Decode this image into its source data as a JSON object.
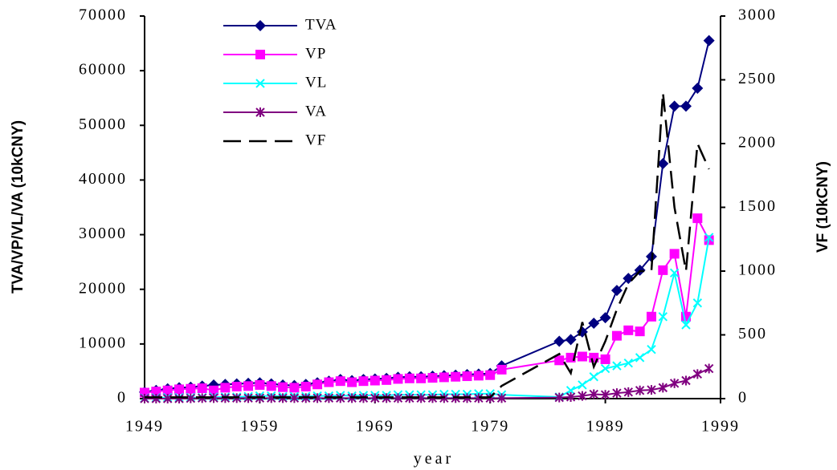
{
  "chart_data": {
    "type": "line",
    "x_label": "year",
    "y_label": "TVA/VP/VL/VA (10kCNY)",
    "y2_label": "VF (10kCNY)",
    "x": [
      1949,
      1950,
      1951,
      1952,
      1953,
      1954,
      1955,
      1956,
      1957,
      1958,
      1959,
      1960,
      1961,
      1962,
      1963,
      1964,
      1965,
      1966,
      1967,
      1968,
      1969,
      1970,
      1971,
      1972,
      1973,
      1974,
      1975,
      1976,
      1977,
      1978,
      1979,
      1980,
      1985,
      1986,
      1987,
      1988,
      1989,
      1990,
      1991,
      1992,
      1993,
      1994,
      1995,
      1996,
      1997,
      1998
    ],
    "xlim": [
      1949,
      1999
    ],
    "xticks": [
      1949,
      1959,
      1969,
      1979,
      1989,
      1999
    ],
    "ylim": [
      0,
      70000
    ],
    "yticks": [
      0,
      10000,
      20000,
      30000,
      40000,
      50000,
      60000,
      70000
    ],
    "y2lim": [
      0,
      3000
    ],
    "y2ticks": [
      0,
      500,
      1000,
      1500,
      2000,
      2500,
      3000
    ],
    "legend": "upper left",
    "series": [
      {
        "name": "TVA",
        "color": "#000080",
        "marker": "diamond",
        "values": [
          1200,
          1500,
          1800,
          2000,
          2100,
          2300,
          2500,
          2600,
          2700,
          2800,
          2900,
          2700,
          2500,
          2400,
          2600,
          2900,
          3200,
          3500,
          3300,
          3500,
          3600,
          3700,
          3900,
          4000,
          4000,
          4100,
          4200,
          4300,
          4400,
          4500,
          4600,
          6000,
          10500,
          10800,
          12200,
          13800,
          14800,
          19800,
          22000,
          23500,
          26000,
          43000,
          53500,
          53500,
          56800,
          65500
        ]
      },
      {
        "name": "VP",
        "color": "#ff00ff",
        "marker": "square",
        "values": [
          1100,
          1300,
          1500,
          1700,
          1800,
          1900,
          1500,
          2000,
          2200,
          2300,
          2500,
          2300,
          2100,
          2000,
          2200,
          2600,
          3000,
          3200,
          3000,
          3200,
          3300,
          3400,
          3600,
          3700,
          3700,
          3800,
          3900,
          4000,
          4100,
          4200,
          4300,
          5300,
          7000,
          7500,
          7700,
          7500,
          7200,
          11500,
          12500,
          12300,
          15000,
          23500,
          26500,
          15000,
          33000,
          29000
        ]
      },
      {
        "name": "VL",
        "color": "#00ffff",
        "marker": "x",
        "values": [
          100,
          150,
          200,
          200,
          200,
          200,
          300,
          300,
          300,
          400,
          500,
          500,
          400,
          400,
          400,
          500,
          500,
          600,
          500,
          600,
          600,
          600,
          700,
          700,
          700,
          700,
          800,
          800,
          800,
          900,
          900,
          700,
          300,
          1500,
          2500,
          4000,
          5500,
          6000,
          6500,
          7500,
          9000,
          15000,
          23000,
          13500,
          17500,
          29500
        ]
      },
      {
        "name": "VA",
        "color": "#800080",
        "marker": "asterisk",
        "values": [
          0,
          0,
          0,
          0,
          50,
          100,
          100,
          100,
          100,
          100,
          100,
          100,
          100,
          100,
          100,
          100,
          100,
          100,
          100,
          100,
          100,
          100,
          100,
          100,
          100,
          100,
          100,
          100,
          100,
          100,
          100,
          100,
          200,
          300,
          500,
          800,
          700,
          1000,
          1200,
          1500,
          1600,
          2000,
          2800,
          3300,
          4500,
          5500
        ]
      },
      {
        "name": "VF",
        "color": "#000000",
        "marker": "none",
        "dash": true,
        "axis": "y2",
        "values": [
          10,
          10,
          10,
          10,
          10,
          10,
          10,
          10,
          10,
          10,
          10,
          10,
          10,
          10,
          10,
          10,
          10,
          10,
          10,
          10,
          10,
          10,
          10,
          10,
          10,
          10,
          10,
          10,
          10,
          10,
          10,
          100,
          350,
          200,
          600,
          250,
          450,
          700,
          900,
          1000,
          1000,
          2400,
          1500,
          1000,
          2000,
          1800
        ]
      }
    ]
  }
}
